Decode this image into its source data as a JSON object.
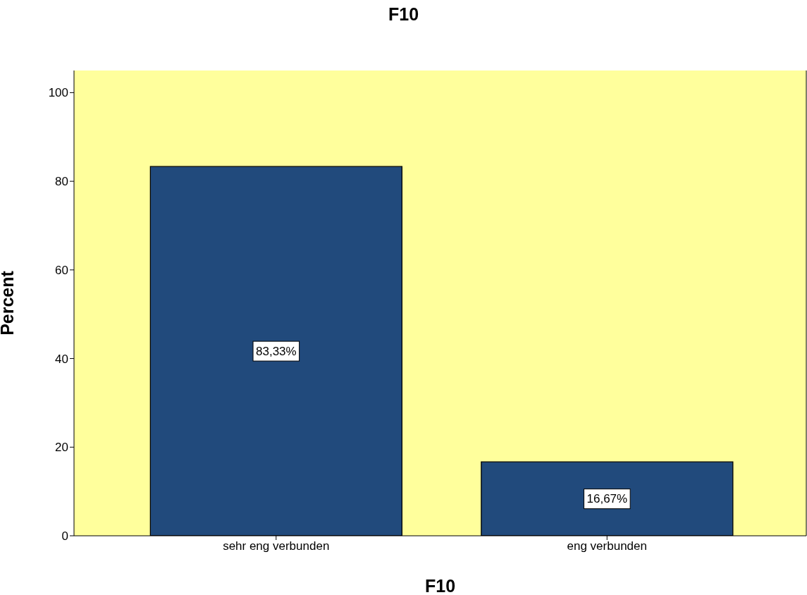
{
  "chart_data": {
    "type": "bar",
    "title": "F10",
    "xlabel": "F10",
    "ylabel": "Percent",
    "categories": [
      "sehr eng verbunden",
      "eng verbunden"
    ],
    "values": [
      83.33,
      16.67
    ],
    "value_labels": [
      "83,33%",
      "16,67%"
    ],
    "color": "#214a7c",
    "ylim": [
      0,
      105
    ],
    "yticks": [
      0,
      20,
      40,
      60,
      80,
      100
    ],
    "grid": false
  }
}
